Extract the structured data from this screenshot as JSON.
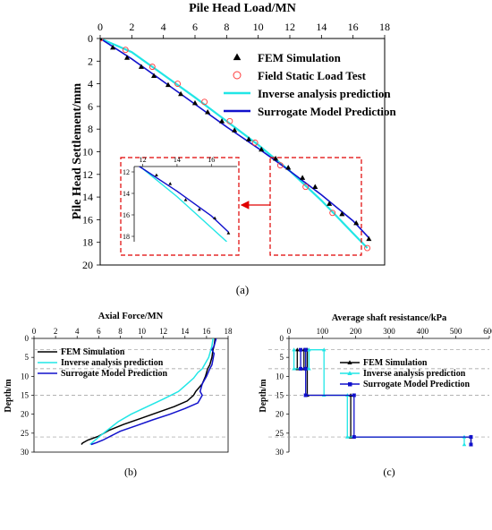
{
  "chart_data": [
    {
      "id": "a",
      "type": "scatter",
      "caption": "(a)",
      "title": "Pile Head Load/MN",
      "ylabel": "Pile Head Settlement/mm",
      "xlim": [
        0,
        18
      ],
      "ylim": [
        20,
        0
      ],
      "xticks": [
        0,
        2,
        4,
        6,
        8,
        10,
        12,
        14,
        16,
        18
      ],
      "yticks": [
        0,
        2,
        4,
        6,
        8,
        10,
        12,
        14,
        16,
        18,
        20
      ],
      "legend_position": "top-right",
      "series": [
        {
          "name": "FEM Simulation",
          "kind": "marker-triangle",
          "color": "#000000",
          "x": [
            0,
            0.8,
            1.7,
            2.6,
            3.4,
            4.3,
            5.1,
            6.0,
            6.8,
            7.7,
            8.5,
            9.4,
            10.2,
            11.1,
            11.9,
            12.8,
            13.6,
            14.5,
            15.3,
            16.2,
            17.0
          ],
          "y": [
            0,
            0.8,
            1.7,
            2.5,
            3.3,
            4.1,
            4.9,
            5.7,
            6.5,
            7.3,
            8.1,
            8.9,
            9.8,
            10.6,
            11.4,
            12.3,
            13.1,
            14.6,
            15.5,
            16.3,
            17.7
          ]
        },
        {
          "name": "Field Static Load Test",
          "kind": "marker-circle",
          "color": "#ff3b3b",
          "x": [
            0,
            1.6,
            3.3,
            4.9,
            6.6,
            8.2,
            9.8,
            11.4,
            13.0,
            14.7,
            16.9
          ],
          "y": [
            0,
            1.0,
            2.5,
            4.0,
            5.6,
            7.3,
            9.2,
            11.2,
            13.1,
            15.4,
            18.5
          ]
        },
        {
          "name": "Inverse analysis prediction",
          "kind": "line",
          "color": "#21e6e6",
          "x": [
            0,
            2,
            4,
            6,
            8,
            10,
            12,
            14,
            16,
            16.9
          ],
          "y": [
            0,
            1.2,
            3.2,
            5.2,
            7.3,
            9.4,
            11.7,
            14.3,
            17.2,
            18.5
          ]
        },
        {
          "name": "Surrogate Model Prediction",
          "kind": "line",
          "color": "#1111cc",
          "x": [
            0,
            2,
            4,
            6,
            8,
            10,
            12,
            14,
            16,
            17
          ],
          "y": [
            0,
            1.8,
            3.8,
            5.8,
            7.8,
            9.7,
            11.7,
            13.8,
            16.1,
            17.6
          ]
        }
      ],
      "inset": {
        "xlim": [
          11.5,
          17.5
        ],
        "ylim": [
          18.5,
          11.5
        ],
        "xticks": [
          12,
          14,
          16
        ],
        "yticks": [
          12,
          14,
          16,
          18
        ]
      }
    },
    {
      "id": "b",
      "type": "line",
      "caption": "(b)",
      "title": "Axial Force/MN",
      "ylabel": "Depth/m",
      "xlim": [
        0,
        18
      ],
      "ylim": [
        30,
        0
      ],
      "xticks": [
        0,
        2,
        4,
        6,
        8,
        10,
        12,
        14,
        16,
        18
      ],
      "yticks": [
        0,
        5,
        10,
        15,
        20,
        25,
        30
      ],
      "reference_depths": [
        3,
        8,
        15,
        26
      ],
      "legend_position": "top-left",
      "series": [
        {
          "name": "FEM Simulation",
          "color": "#000000",
          "x": [
            16.8,
            16.7,
            16.6,
            16.5,
            16.3,
            16.1,
            15.9,
            15.6,
            15.0,
            14.8,
            14.2,
            13.0,
            11.5,
            10.0,
            8.3,
            7.0,
            6.0,
            5.0,
            4.5,
            4.4
          ],
          "y": [
            0,
            2,
            3,
            5,
            7,
            8,
            10,
            12,
            14,
            15,
            16.5,
            18,
            19.5,
            21,
            22.7,
            24.2,
            25.8,
            26.8,
            27.6,
            28.0
          ]
        },
        {
          "name": "Inverse analysis prediction",
          "color": "#21e6e6",
          "x": [
            16.6,
            16.5,
            16.4,
            16.2,
            16.0,
            15.6,
            15.2,
            14.8,
            14.2,
            13.4,
            12.0,
            10.5,
            9.0,
            7.8,
            6.9,
            6.1,
            5.6,
            5.2
          ],
          "y": [
            0,
            2,
            3,
            5,
            6,
            8,
            9,
            10.5,
            12,
            14,
            16,
            18,
            20,
            22,
            24,
            25.8,
            27,
            28.0
          ]
        },
        {
          "name": "Surrogate Model Prediction",
          "color": "#1111cc",
          "x": [
            16.9,
            16.7,
            16.5,
            16.7,
            16.6,
            16.5,
            16.3,
            16.0,
            15.6,
            15.4,
            15.6,
            15.2,
            14.0,
            12.6,
            11.0,
            9.5,
            8.0,
            7.1,
            6.4,
            5.8,
            5.3
          ],
          "y": [
            0,
            2,
            3,
            4,
            5.5,
            7,
            8,
            10,
            12,
            14,
            15,
            17,
            18.5,
            20,
            21.5,
            23,
            24.5,
            25.8,
            26.8,
            27.5,
            28.0
          ]
        }
      ]
    },
    {
      "id": "c",
      "type": "line",
      "caption": "(c)",
      "title": "Average shaft resistance/kPa",
      "ylabel": "Depth/m",
      "xlim": [
        0,
        600
      ],
      "ylim": [
        30,
        0
      ],
      "xticks": [
        0,
        100,
        200,
        300,
        400,
        500,
        600
      ],
      "yticks": [
        0,
        5,
        10,
        15,
        20,
        25,
        30
      ],
      "reference_depths": [
        3,
        8,
        15,
        26
      ],
      "legend_position": "top-right",
      "series": [
        {
          "name": "FEM Simulation",
          "color": "#000000",
          "x": [
            25,
            25,
            45,
            45,
            55,
            55,
            185,
            185,
            545,
            545
          ],
          "y": [
            3,
            8,
            8,
            3,
            3,
            15,
            15,
            26,
            26,
            28
          ]
        },
        {
          "name": "Inverse analysis prediction",
          "color": "#21e6e6",
          "x": [
            15,
            15,
            60,
            60,
            105,
            105,
            175,
            175,
            525,
            525
          ],
          "y": [
            3,
            8,
            8,
            3,
            3,
            15,
            15,
            26,
            26,
            28
          ]
        },
        {
          "name": "Surrogate Model Prediction",
          "color": "#1111cc",
          "x": [
            35,
            35,
            50,
            50,
            50,
            50,
            195,
            195,
            545,
            545
          ],
          "y": [
            3,
            8,
            8,
            3,
            3,
            15,
            15,
            26,
            26,
            28
          ]
        }
      ]
    }
  ]
}
